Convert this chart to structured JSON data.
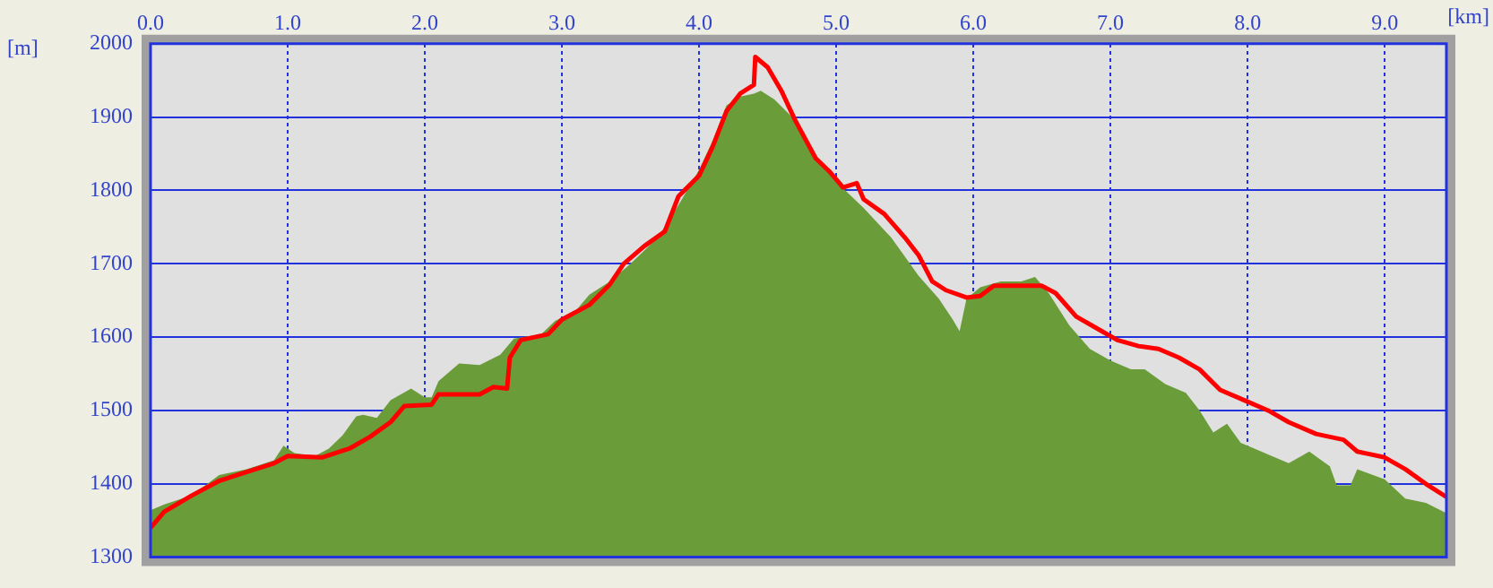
{
  "chart_data": {
    "type": "area",
    "xlabel": "[km]",
    "ylabel": "[m]",
    "xlim": [
      0,
      9.45
    ],
    "xticks": [
      {
        "value": 0,
        "label": "0.0"
      },
      {
        "value": 1,
        "label": "1.0"
      },
      {
        "value": 2,
        "label": "2.0"
      },
      {
        "value": 3,
        "label": "3.0"
      },
      {
        "value": 4,
        "label": "4.0"
      },
      {
        "value": 5,
        "label": "5.0"
      },
      {
        "value": 6,
        "label": "6.0"
      },
      {
        "value": 7,
        "label": "7.0"
      },
      {
        "value": 8,
        "label": "8.0"
      },
      {
        "value": 9,
        "label": "9.0"
      }
    ],
    "ylim": [
      1300,
      2000
    ],
    "yticks": [
      1300,
      1400,
      1500,
      1600,
      1700,
      1800,
      1900,
      2000
    ],
    "grid": true,
    "legend": false,
    "marker": "none",
    "series": [
      {
        "type": "area",
        "color": "#6b9c3a",
        "x": [
          0,
          0.1,
          0.3,
          0.5,
          0.7,
          0.9,
          0.97,
          1.05,
          1.2,
          1.3,
          1.4,
          1.5,
          1.55,
          1.65,
          1.75,
          1.9,
          2.0,
          2.05,
          2.1,
          2.25,
          2.4,
          2.55,
          2.65,
          2.85,
          2.95,
          3.1,
          3.2,
          3.35,
          3.5,
          3.7,
          3.85,
          4.0,
          4.1,
          4.2,
          4.3,
          4.4,
          4.45,
          4.55,
          4.7,
          4.85,
          5.0,
          5.2,
          5.4,
          5.6,
          5.75,
          5.85,
          5.9,
          5.95,
          6.05,
          6.2,
          6.35,
          6.45,
          6.55,
          6.7,
          6.85,
          7.0,
          7.15,
          7.25,
          7.4,
          7.55,
          7.65,
          7.75,
          7.85,
          7.95,
          8.1,
          8.3,
          8.45,
          8.6,
          8.65,
          8.75,
          8.8,
          9.0,
          9.15,
          9.3,
          9.45
        ],
        "values": [
          1364,
          1372,
          1384,
          1412,
          1420,
          1432,
          1452,
          1442,
          1438,
          1448,
          1466,
          1492,
          1494,
          1490,
          1514,
          1530,
          1518,
          1518,
          1540,
          1564,
          1562,
          1576,
          1598,
          1604,
          1622,
          1636,
          1658,
          1676,
          1700,
          1736,
          1780,
          1828,
          1868,
          1916,
          1928,
          1932,
          1936,
          1924,
          1896,
          1848,
          1812,
          1776,
          1736,
          1684,
          1652,
          1624,
          1608,
          1652,
          1668,
          1676,
          1676,
          1682,
          1660,
          1616,
          1584,
          1568,
          1556,
          1556,
          1536,
          1524,
          1500,
          1470,
          1482,
          1456,
          1444,
          1428,
          1444,
          1424,
          1398,
          1398,
          1420,
          1406,
          1380,
          1374,
          1360
        ]
      },
      {
        "type": "line",
        "color": "#ff0000",
        "x": [
          0,
          0.1,
          0.3,
          0.5,
          0.7,
          0.9,
          1.0,
          1.25,
          1.45,
          1.6,
          1.75,
          1.85,
          2.05,
          2.1,
          2.4,
          2.5,
          2.6,
          2.62,
          2.7,
          2.9,
          3.0,
          3.2,
          3.35,
          3.45,
          3.6,
          3.75,
          3.85,
          4.0,
          4.1,
          4.2,
          4.3,
          4.4,
          4.41,
          4.5,
          4.6,
          4.7,
          4.85,
          4.95,
          5.05,
          5.15,
          5.2,
          5.35,
          5.5,
          5.6,
          5.7,
          5.8,
          5.95,
          6.05,
          6.15,
          6.25,
          6.5,
          6.6,
          6.75,
          6.9,
          7.05,
          7.2,
          7.35,
          7.5,
          7.65,
          7.8,
          8.0,
          8.15,
          8.3,
          8.5,
          8.7,
          8.8,
          9.0,
          9.15,
          9.3,
          9.45
        ],
        "values": [
          1340,
          1362,
          1384,
          1404,
          1416,
          1428,
          1438,
          1436,
          1448,
          1464,
          1484,
          1506,
          1508,
          1522,
          1522,
          1532,
          1530,
          1572,
          1596,
          1604,
          1624,
          1644,
          1672,
          1700,
          1724,
          1744,
          1792,
          1820,
          1860,
          1908,
          1932,
          1944,
          1982,
          1968,
          1936,
          1896,
          1844,
          1826,
          1804,
          1810,
          1788,
          1768,
          1736,
          1712,
          1676,
          1664,
          1654,
          1656,
          1670,
          1670,
          1670,
          1660,
          1628,
          1612,
          1596,
          1588,
          1584,
          1572,
          1556,
          1528,
          1512,
          1500,
          1484,
          1468,
          1460,
          1444,
          1436,
          1420,
          1400,
          1382
        ]
      }
    ]
  }
}
